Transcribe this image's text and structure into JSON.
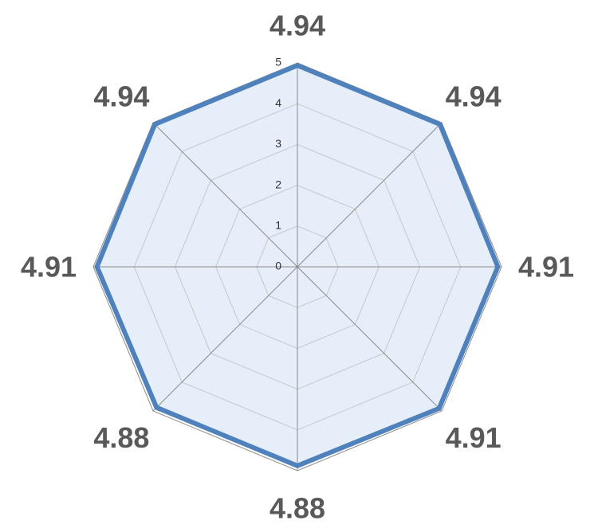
{
  "chart_data": {
    "type": "radar",
    "categories": [
      null,
      null,
      null,
      null,
      null,
      null,
      null,
      null
    ],
    "series": [
      {
        "color": "#4f81bd",
        "fill": "#e6eef9",
        "values": [
          4.94,
          4.94,
          4.91,
          4.91,
          4.88,
          4.88,
          4.91,
          4.94
        ]
      }
    ],
    "ylim": [
      0,
      5
    ],
    "yticks": [
      0,
      1,
      2,
      3,
      4,
      5
    ],
    "grid": true
  }
}
